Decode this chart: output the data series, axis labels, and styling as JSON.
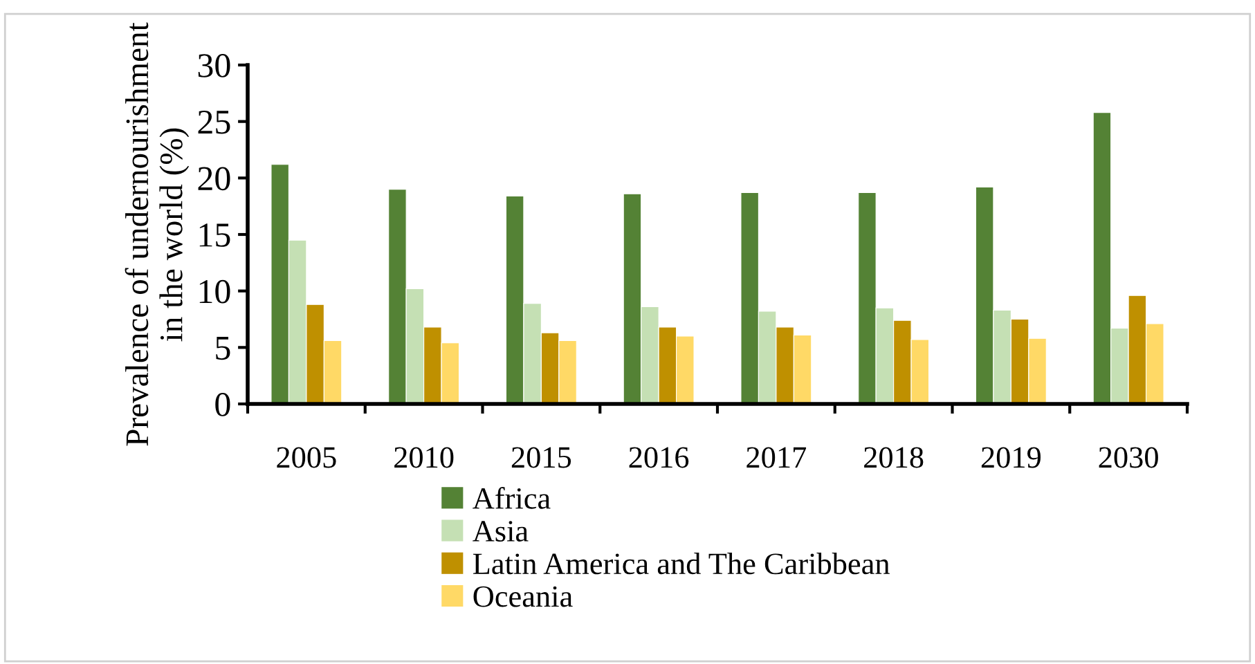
{
  "chart_data": {
    "type": "bar",
    "ylabel": "Prevalence of undernourishment\nin the world (%)",
    "categories": [
      "2005",
      "2010",
      "2015",
      "2016",
      "2017",
      "2018",
      "2019",
      "2030"
    ],
    "series": [
      {
        "name": "Africa",
        "color": "#548235",
        "values": [
          21.2,
          19.0,
          18.4,
          18.6,
          18.7,
          18.7,
          19.2,
          25.8
        ]
      },
      {
        "name": "Asia",
        "color": "#c5e0b4",
        "values": [
          14.5,
          10.2,
          8.9,
          8.6,
          8.2,
          8.5,
          8.3,
          6.7
        ]
      },
      {
        "name": "Latin America and The Caribbean",
        "color": "#bf9000",
        "values": [
          8.8,
          6.8,
          6.3,
          6.8,
          6.8,
          7.4,
          7.5,
          9.6
        ]
      },
      {
        "name": "Oceania",
        "color": "#ffd966",
        "values": [
          5.6,
          5.4,
          5.6,
          6.0,
          6.1,
          5.7,
          5.8,
          7.1
        ]
      }
    ],
    "ylim": [
      0,
      30
    ],
    "yticks": [
      0,
      5,
      10,
      15,
      20,
      25,
      30
    ],
    "grid": false,
    "legend": "bottom"
  }
}
